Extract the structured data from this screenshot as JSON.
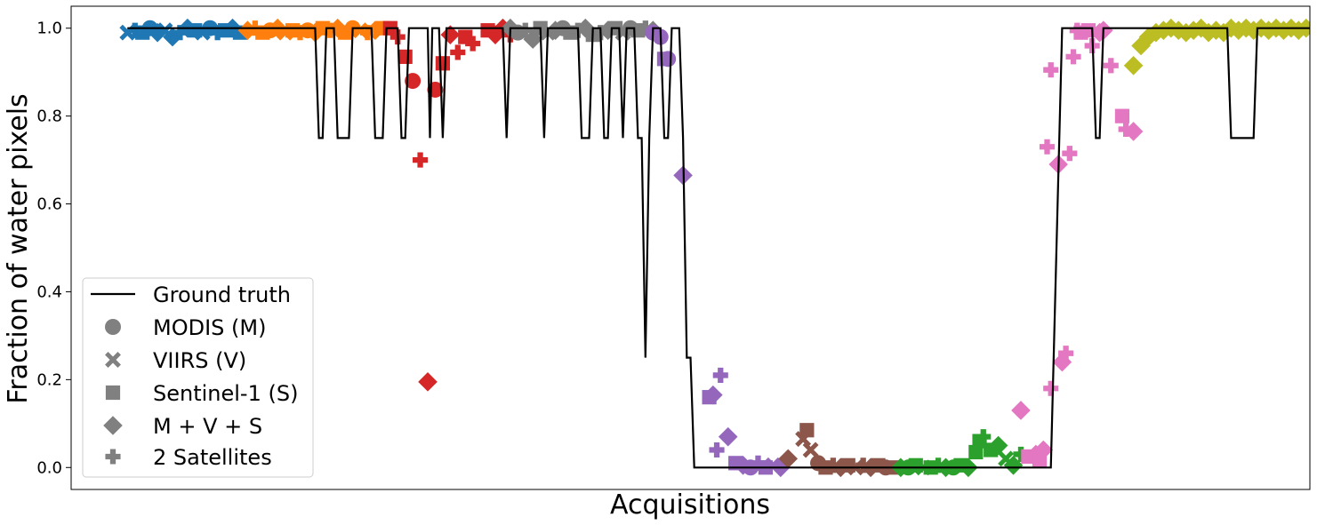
{
  "chart_data": {
    "type": "scatter",
    "xlabel": "Acquisitions",
    "ylabel": "Fraction of water pixels",
    "xlim": [
      -7.5,
      157.5
    ],
    "ylim": [
      -0.05,
      1.05
    ],
    "yticks": [
      "0.0",
      "0.2",
      "0.4",
      "0.6",
      "0.8",
      "1.0"
    ],
    "ytick_values": [
      0.0,
      0.2,
      0.4,
      0.6,
      0.8,
      1.0
    ],
    "grid": false,
    "legend_position": "lower-left",
    "colors": {
      "ground_truth": "#000000",
      "segments": [
        "#1f77b4",
        "#ff7f0e",
        "#d62728",
        "#7f7f7f",
        "#9467bd",
        "#8c564b",
        "#2ca02c",
        "#e377c2",
        "#bcbd22"
      ],
      "legend_marker": "#808080"
    },
    "legend": {
      "ground_truth": "Ground truth",
      "modis": "MODIS (M)",
      "viirs": "VIIRS (V)",
      "sentinel": "Sentinel-1 (S)",
      "combo": "M + V + S",
      "two_sat": "2 Satellites"
    },
    "ground_truth": [
      [
        0,
        1.0
      ],
      [
        25,
        1.0
      ],
      [
        25.5,
        0.75
      ],
      [
        26,
        0.75
      ],
      [
        26.5,
        1.0
      ],
      [
        27.5,
        1.0
      ],
      [
        28,
        0.75
      ],
      [
        29.5,
        0.75
      ],
      [
        30,
        1.0
      ],
      [
        32.5,
        1.0
      ],
      [
        33,
        0.75
      ],
      [
        34,
        0.75
      ],
      [
        34.5,
        1.0
      ],
      [
        36,
        1.0
      ],
      [
        36.5,
        0.75
      ],
      [
        37,
        0.75
      ],
      [
        37.5,
        1.0
      ],
      [
        40,
        1.0
      ],
      [
        40.3,
        0.75
      ],
      [
        40.6,
        1.0
      ],
      [
        41.5,
        1.0
      ],
      [
        42,
        0.75
      ],
      [
        42.5,
        1.0
      ],
      [
        50,
        1.0
      ],
      [
        50.5,
        0.75
      ],
      [
        51,
        1.0
      ],
      [
        55,
        1.0
      ],
      [
        55.5,
        0.75
      ],
      [
        56,
        1.0
      ],
      [
        60,
        1.0
      ],
      [
        60.5,
        0.75
      ],
      [
        61.5,
        0.75
      ],
      [
        62,
        1.0
      ],
      [
        63,
        1.0
      ],
      [
        63.5,
        0.75
      ],
      [
        64,
        0.75
      ],
      [
        64.5,
        1.0
      ],
      [
        65.5,
        1.0
      ],
      [
        66,
        0.75
      ],
      [
        66.5,
        1.0
      ],
      [
        67.5,
        1.0
      ],
      [
        68,
        0.75
      ],
      [
        68.5,
        0.75
      ],
      [
        69,
        0.25
      ],
      [
        69.5,
        0.75
      ],
      [
        70,
        1.0
      ],
      [
        71,
        1.0
      ],
      [
        71.5,
        0.75
      ],
      [
        72,
        0.75
      ],
      [
        72.5,
        1.0
      ],
      [
        73.5,
        1.0
      ],
      [
        74,
        0.75
      ],
      [
        74.5,
        0.25
      ],
      [
        75,
        0.25
      ],
      [
        75.5,
        0.0
      ],
      [
        123,
        0.0
      ],
      [
        124.5,
        1.0
      ],
      [
        128.5,
        1.0
      ],
      [
        129,
        0.75
      ],
      [
        129.5,
        0.75
      ],
      [
        130,
        1.0
      ],
      [
        146.5,
        1.0
      ],
      [
        147,
        0.75
      ],
      [
        150,
        0.75
      ],
      [
        150.5,
        1.0
      ],
      [
        158,
        1.0
      ]
    ],
    "series": [
      {
        "points": [
          [
            0,
            0.99,
            "x"
          ],
          [
            1,
            0.995,
            "p"
          ],
          [
            2,
            0.99,
            "s"
          ],
          [
            3,
            1.0,
            "o"
          ],
          [
            4,
            0.99,
            "d"
          ],
          [
            5,
            0.995,
            "x"
          ],
          [
            6,
            0.98,
            "d"
          ],
          [
            7,
            0.99,
            "p"
          ],
          [
            8,
            1.0,
            "d"
          ],
          [
            9,
            0.995,
            "s"
          ],
          [
            10,
            0.99,
            "x"
          ],
          [
            11,
            1.0,
            "o"
          ],
          [
            12,
            0.99,
            "p"
          ],
          [
            13,
            0.995,
            "s"
          ],
          [
            14,
            1.0,
            "d"
          ],
          [
            15,
            0.99,
            "s"
          ]
        ]
      },
      {
        "points": [
          [
            16,
            0.995,
            "d"
          ],
          [
            17,
            1.0,
            "p"
          ],
          [
            18,
            0.99,
            "s"
          ],
          [
            19,
            0.995,
            "o"
          ],
          [
            20,
            1.0,
            "d"
          ],
          [
            21,
            0.99,
            "x"
          ],
          [
            22,
            0.995,
            "s"
          ],
          [
            23,
            0.99,
            "p"
          ],
          [
            24,
            0.995,
            "o"
          ],
          [
            25,
            0.99,
            "d"
          ],
          [
            26,
            1.0,
            "s"
          ],
          [
            27,
            0.995,
            "p"
          ],
          [
            28,
            1.0,
            "d"
          ],
          [
            29,
            0.99,
            "s"
          ],
          [
            30,
            1.0,
            "o"
          ],
          [
            31,
            0.995,
            "x"
          ],
          [
            32,
            0.99,
            "p"
          ],
          [
            33,
            0.995,
            "d"
          ],
          [
            34,
            1.0,
            "s"
          ]
        ]
      },
      {
        "points": [
          [
            35,
            1.0,
            "s"
          ],
          [
            36,
            0.98,
            "p"
          ],
          [
            37,
            0.935,
            "s"
          ],
          [
            38,
            0.88,
            "o"
          ],
          [
            39,
            0.7,
            "p"
          ],
          [
            40,
            0.195,
            "d"
          ],
          [
            41,
            0.86,
            "o"
          ],
          [
            42,
            0.92,
            "s"
          ],
          [
            43,
            0.985,
            "d"
          ],
          [
            44,
            0.945,
            "p"
          ],
          [
            45,
            0.98,
            "s"
          ],
          [
            46,
            0.965,
            "p"
          ],
          [
            48,
            0.995,
            "s"
          ],
          [
            49,
            0.985,
            "d"
          ],
          [
            50,
            1.0,
            "d"
          ],
          [
            51,
            0.985,
            "p"
          ]
        ]
      },
      {
        "points": [
          [
            51,
            1.0,
            "d"
          ],
          [
            52,
            0.99,
            "o"
          ],
          [
            53,
            0.995,
            "p"
          ],
          [
            54,
            0.975,
            "d"
          ],
          [
            55,
            1.0,
            "s"
          ],
          [
            56,
            0.99,
            "x"
          ],
          [
            57,
            0.995,
            "d"
          ],
          [
            58,
            1.0,
            "o"
          ],
          [
            59,
            0.99,
            "s"
          ],
          [
            60,
            0.995,
            "p"
          ],
          [
            61,
            1.0,
            "d"
          ],
          [
            62,
            0.985,
            "s"
          ],
          [
            63,
            0.99,
            "p"
          ],
          [
            64,
            0.995,
            "d"
          ],
          [
            65,
            1.0,
            "s"
          ],
          [
            66,
            0.99,
            "x"
          ],
          [
            67,
            1.0,
            "o"
          ],
          [
            68,
            0.995,
            "s"
          ],
          [
            69,
            1.0,
            "p"
          ],
          [
            70,
            0.995,
            "d"
          ]
        ]
      },
      {
        "points": [
          [
            70,
            0.99,
            "o"
          ],
          [
            71,
            0.98,
            "o"
          ],
          [
            71.5,
            0.93,
            "s"
          ],
          [
            72,
            0.93,
            "o"
          ],
          [
            74,
            0.665,
            "d"
          ],
          [
            79,
            0.21,
            "p"
          ],
          [
            77.5,
            0.16,
            "s"
          ],
          [
            78,
            0.165,
            "d"
          ],
          [
            80,
            0.07,
            "d"
          ],
          [
            78.5,
            0.04,
            "p"
          ],
          [
            81,
            0.01,
            "s"
          ],
          [
            82,
            0.005,
            "d"
          ],
          [
            83,
            0.0,
            "o"
          ],
          [
            84,
            0.01,
            "p"
          ],
          [
            85,
            0.0,
            "s"
          ],
          [
            86,
            0.005,
            "x"
          ],
          [
            87,
            0.0,
            "d"
          ]
        ]
      },
      {
        "points": [
          [
            88,
            0.02,
            "d"
          ],
          [
            90,
            0.065,
            "x"
          ],
          [
            90.5,
            0.085,
            "s"
          ],
          [
            91,
            0.04,
            "x"
          ],
          [
            92,
            0.01,
            "o"
          ],
          [
            93,
            0.0,
            "s"
          ],
          [
            94,
            0.005,
            "p"
          ],
          [
            95,
            0.0,
            "d"
          ],
          [
            96,
            0.005,
            "s"
          ],
          [
            97,
            0.0,
            "x"
          ],
          [
            98,
            0.005,
            "p"
          ],
          [
            99,
            0.0,
            "d"
          ],
          [
            100,
            0.005,
            "s"
          ],
          [
            101,
            0.0,
            "o"
          ],
          [
            102,
            0.0,
            "s"
          ]
        ]
      },
      {
        "points": [
          [
            103,
            0.0,
            "d"
          ],
          [
            104,
            0.0,
            "o"
          ],
          [
            105,
            0.005,
            "s"
          ],
          [
            106,
            0.0,
            "x"
          ],
          [
            107,
            0.0,
            "s"
          ],
          [
            108,
            0.005,
            "p"
          ],
          [
            109,
            0.0,
            "d"
          ],
          [
            110,
            0.0,
            "o"
          ],
          [
            111,
            0.005,
            "s"
          ],
          [
            112,
            0.0,
            "d"
          ],
          [
            113,
            0.035,
            "s"
          ],
          [
            113.5,
            0.06,
            "s"
          ],
          [
            114,
            0.07,
            "p"
          ],
          [
            115,
            0.04,
            "s"
          ],
          [
            116,
            0.05,
            "d"
          ],
          [
            117,
            0.02,
            "x"
          ],
          [
            118,
            0.005,
            "d"
          ],
          [
            119,
            0.03,
            "p"
          ]
        ]
      },
      {
        "points": [
          [
            119,
            0.13,
            "d"
          ],
          [
            120,
            0.025,
            "s"
          ],
          [
            121,
            0.03,
            "d"
          ],
          [
            122,
            0.04,
            "d"
          ],
          [
            121.5,
            0.015,
            "s"
          ],
          [
            123,
            0.18,
            "p"
          ],
          [
            122.5,
            0.73,
            "p"
          ],
          [
            123,
            0.905,
            "p"
          ],
          [
            124,
            0.69,
            "d"
          ],
          [
            124.5,
            0.24,
            "d"
          ],
          [
            125,
            0.26,
            "p"
          ],
          [
            125.5,
            0.715,
            "p"
          ],
          [
            126,
            0.935,
            "p"
          ],
          [
            126.5,
            0.995,
            "p"
          ],
          [
            127,
            0.99,
            "s"
          ],
          [
            128,
            0.995,
            "s"
          ],
          [
            128.5,
            0.96,
            "p"
          ],
          [
            129.5,
            0.99,
            "d"
          ],
          [
            130,
            0.995,
            "d"
          ],
          [
            131,
            0.915,
            "p"
          ],
          [
            132.5,
            0.8,
            "s"
          ],
          [
            133,
            0.77,
            "p"
          ],
          [
            134,
            0.765,
            "d"
          ]
        ]
      },
      {
        "points": [
          [
            134,
            0.915,
            "d"
          ],
          [
            135,
            0.96,
            "d"
          ],
          [
            136,
            0.98,
            "d"
          ],
          [
            137,
            0.99,
            "d"
          ],
          [
            138,
            0.995,
            "d"
          ],
          [
            139,
            1.0,
            "d"
          ],
          [
            140,
            0.995,
            "d"
          ],
          [
            141,
            0.99,
            "d"
          ],
          [
            142,
            0.995,
            "d"
          ],
          [
            143,
            1.0,
            "d"
          ],
          [
            144,
            0.99,
            "d"
          ],
          [
            145,
            0.995,
            "d"
          ],
          [
            146,
            0.99,
            "d"
          ],
          [
            147,
            1.0,
            "d"
          ],
          [
            148,
            0.995,
            "d"
          ],
          [
            149,
            1.0,
            "d"
          ],
          [
            150,
            0.995,
            "d"
          ],
          [
            151,
            1.0,
            "d"
          ],
          [
            152,
            0.995,
            "d"
          ],
          [
            153,
            1.0,
            "d"
          ],
          [
            154,
            0.995,
            "d"
          ],
          [
            155,
            1.0,
            "d"
          ],
          [
            156,
            0.995,
            "d"
          ],
          [
            157,
            1.0,
            "d"
          ]
        ]
      }
    ]
  }
}
